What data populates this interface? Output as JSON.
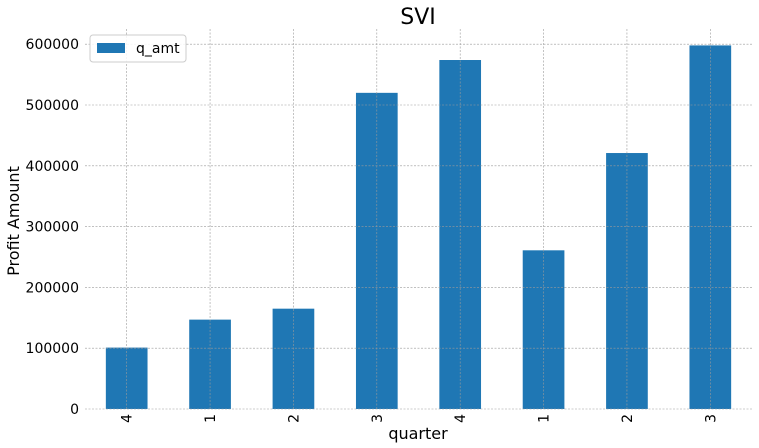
{
  "chart_data": {
    "type": "bar",
    "title": "SVI",
    "xlabel": "quarter",
    "ylabel": "Profit Amount",
    "categories": [
      "4",
      "1",
      "2",
      "3",
      "4",
      "1",
      "2",
      "3"
    ],
    "series": [
      {
        "name": "q_amt",
        "color": "#1f77b4",
        "values": [
          101000,
          147000,
          165000,
          520000,
          574000,
          261000,
          421000,
          598000
        ]
      }
    ],
    "ylim": [
      0,
      625000
    ],
    "yticks": [
      0,
      100000,
      200000,
      300000,
      400000,
      500000,
      600000
    ],
    "ytick_labels": [
      "0",
      "100000",
      "200000",
      "300000",
      "400000",
      "500000",
      "600000"
    ],
    "grid": true,
    "legend_position": "top-left"
  }
}
